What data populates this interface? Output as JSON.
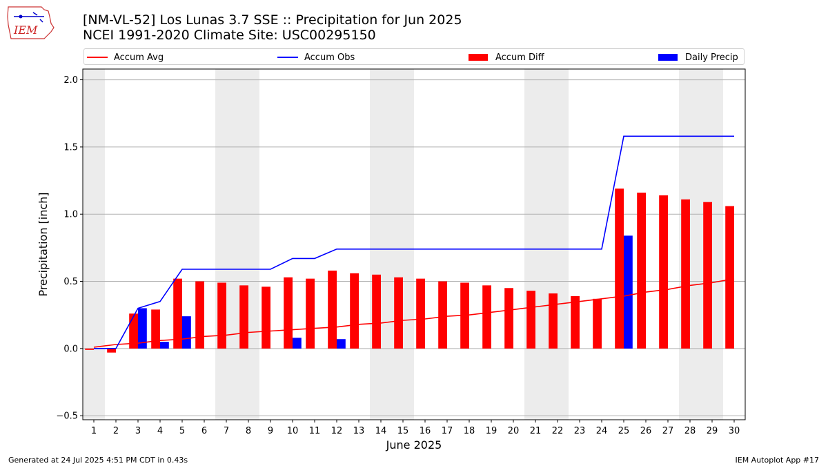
{
  "header": {
    "title": "[NM-VL-52] Los Lunas 3.7 SSE :: Precipitation for Jun 2025",
    "subtitle": "NCEI 1991-2020 Climate Site: USC00295150",
    "logo_text": "IEM"
  },
  "legend": [
    {
      "label": "Accum Avg",
      "kind": "line",
      "color": "#ff0000"
    },
    {
      "label": "Accum Obs",
      "kind": "line",
      "color": "#0000ff"
    },
    {
      "label": "Accum Diff",
      "kind": "bar",
      "color": "#ff0000"
    },
    {
      "label": "Daily Precip",
      "kind": "bar",
      "color": "#0000ff"
    }
  ],
  "footer": {
    "left": "Generated at 24 Jul 2025 4:51 PM CDT in 0.43s",
    "right": "IEM Autoplot App #17"
  },
  "chart_data": {
    "type": "bar",
    "xlabel": "June 2025",
    "ylabel": "Precipitation [inch]",
    "xlim": [
      0.5,
      30.5
    ],
    "ylim": [
      -0.53,
      2.08
    ],
    "yticks": [
      -0.5,
      0.0,
      0.5,
      1.0,
      1.5,
      2.0
    ],
    "ytick_labels": [
      "−0.5",
      "0.0",
      "0.5",
      "1.0",
      "1.5",
      "2.0"
    ],
    "grid": true,
    "legend_position": "top",
    "weekend_days": [
      1,
      7,
      8,
      14,
      15,
      21,
      22,
      28,
      29
    ],
    "days": [
      1,
      2,
      3,
      4,
      5,
      6,
      7,
      8,
      9,
      10,
      11,
      12,
      13,
      14,
      15,
      16,
      17,
      18,
      19,
      20,
      21,
      22,
      23,
      24,
      25,
      26,
      27,
      28,
      29,
      30
    ],
    "series": [
      {
        "name": "Accum Avg",
        "kind": "line",
        "color": "#ff0000",
        "values": [
          0.01,
          0.03,
          0.04,
          0.06,
          0.07,
          0.09,
          0.1,
          0.12,
          0.13,
          0.14,
          0.15,
          0.16,
          0.18,
          0.19,
          0.21,
          0.22,
          0.24,
          0.25,
          0.27,
          0.29,
          0.31,
          0.33,
          0.35,
          0.37,
          0.39,
          0.42,
          0.44,
          0.47,
          0.49,
          0.52
        ]
      },
      {
        "name": "Accum Obs",
        "kind": "line",
        "color": "#0000ff",
        "values": [
          0.0,
          0.0,
          0.3,
          0.35,
          0.59,
          0.59,
          0.59,
          0.59,
          0.59,
          0.67,
          0.67,
          0.74,
          0.74,
          0.74,
          0.74,
          0.74,
          0.74,
          0.74,
          0.74,
          0.74,
          0.74,
          0.74,
          0.74,
          0.74,
          1.58,
          1.58,
          1.58,
          1.58,
          1.58,
          1.58
        ]
      },
      {
        "name": "Accum Diff",
        "kind": "bar",
        "color": "#ff0000",
        "values": [
          -0.01,
          -0.03,
          0.26,
          0.29,
          0.52,
          0.5,
          0.49,
          0.47,
          0.46,
          0.53,
          0.52,
          0.58,
          0.56,
          0.55,
          0.53,
          0.52,
          0.5,
          0.49,
          0.47,
          0.45,
          0.43,
          0.41,
          0.39,
          0.37,
          1.19,
          1.16,
          1.14,
          1.11,
          1.09,
          1.06
        ]
      },
      {
        "name": "Daily Precip",
        "kind": "bar",
        "color": "#0000ff",
        "values": [
          0,
          0,
          0.3,
          0.05,
          0.24,
          0,
          0,
          0,
          0,
          0.08,
          0,
          0.07,
          0,
          0,
          0,
          0,
          0,
          0,
          0,
          0,
          0,
          0,
          0,
          0,
          0.84,
          0,
          0,
          0,
          0,
          0
        ]
      }
    ]
  }
}
